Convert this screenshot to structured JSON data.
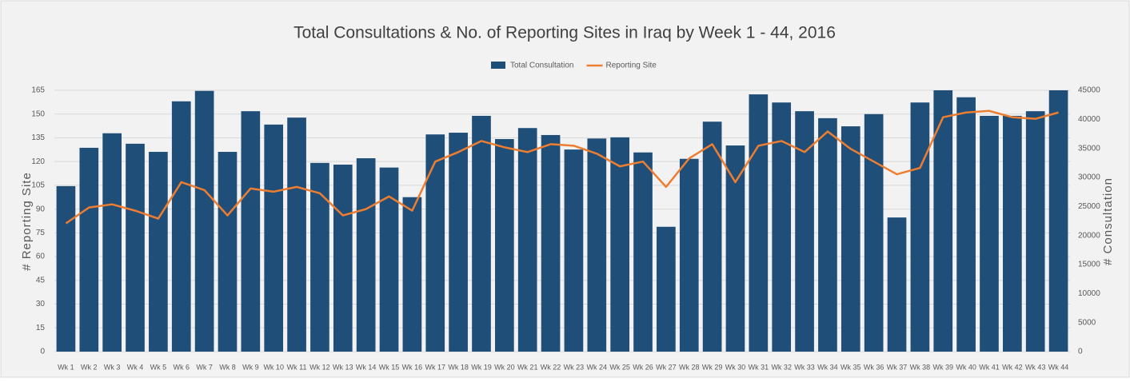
{
  "chart_data": {
    "type": "bar-line",
    "title": "Total Consultations & No. of Reporting Sites in Iraq by Week 1 - 44, 2016",
    "ylabel": "# Reporting Site",
    "y2label": "# Consultation",
    "categories": [
      "Wk 1",
      "Wk 2",
      "Wk 3",
      "Wk 4",
      "Wk 5",
      "Wk 6",
      "Wk 7",
      "Wk 8",
      "Wk 9",
      "Wk 10",
      "Wk 11",
      "Wk 12",
      "Wk 13",
      "Wk 14",
      "Wk 15",
      "Wk 16",
      "Wk 17",
      "Wk 18",
      "Wk 19",
      "Wk 20",
      "Wk 21",
      "Wk 22",
      "Wk 23",
      "Wk 24",
      "Wk 25",
      "Wk 26",
      "Wk 27",
      "Wk 28",
      "Wk 29",
      "Wk 30",
      "Wk 31",
      "Wk 32",
      "Wk 33",
      "Wk 34",
      "Wk 35",
      "Wk 36",
      "Wk 37",
      "Wk 38",
      "Wk 39",
      "Wk 40",
      "Wk 41",
      "Wk 42",
      "Wk 43",
      "Wk 44"
    ],
    "series": [
      {
        "name": "Total Consultation",
        "type": "bar",
        "axis": "y2",
        "color": "#1f4e79",
        "values": [
          28500,
          35100,
          37600,
          35800,
          34400,
          43100,
          44900,
          34400,
          41400,
          39100,
          40300,
          32500,
          32200,
          33300,
          31700,
          26600,
          37400,
          37700,
          40600,
          36600,
          38500,
          37300,
          34800,
          36700,
          36900,
          34300,
          21500,
          33200,
          39600,
          35500,
          44300,
          42900,
          41400,
          40200,
          38800,
          40900,
          23100,
          42900,
          45000,
          43800,
          40600,
          40600,
          41400,
          45000
        ]
      },
      {
        "name": "Reporting Site",
        "type": "line",
        "axis": "y",
        "color": "#ed7d31",
        "values": [
          81,
          91,
          93,
          89,
          84,
          107,
          102,
          86,
          103,
          101,
          104,
          100,
          86,
          90,
          98,
          89,
          120,
          126,
          133,
          129,
          126,
          131,
          130,
          125,
          117,
          120,
          104,
          122,
          131,
          107,
          130,
          133,
          126,
          139,
          128,
          120,
          112,
          116,
          148,
          151,
          152,
          148,
          147,
          151
        ]
      }
    ],
    "ylim": [
      0,
      165
    ],
    "yticks": [
      0,
      15,
      30,
      45,
      60,
      75,
      90,
      105,
      120,
      135,
      150,
      165
    ],
    "y2lim": [
      0,
      45000
    ],
    "y2ticks": [
      0,
      5000,
      10000,
      15000,
      20000,
      25000,
      30000,
      35000,
      40000,
      45000
    ],
    "grid": true,
    "legend": "top"
  }
}
